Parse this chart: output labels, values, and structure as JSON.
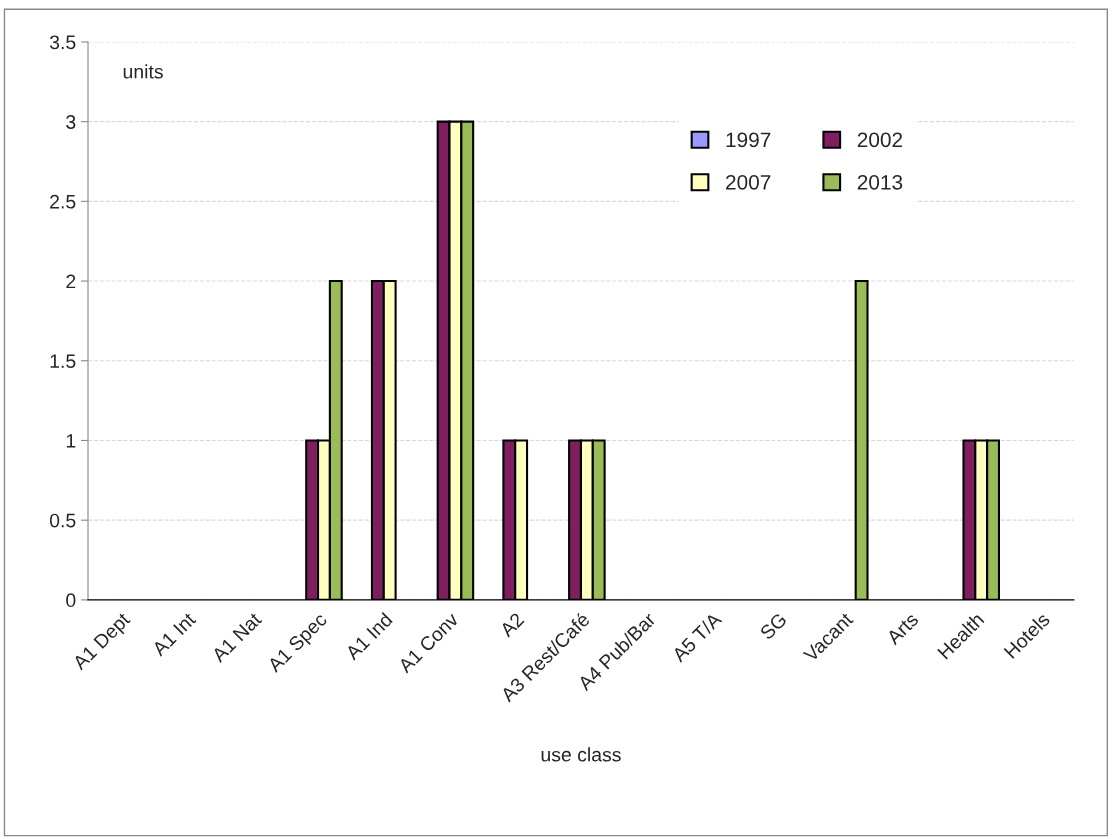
{
  "chart_data": {
    "type": "bar",
    "xlabel": "use class",
    "annotations": [
      "units"
    ],
    "categories": [
      "A1 Dept",
      "A1 Int",
      "A1 Nat",
      "A1 Spec",
      "A1 Ind",
      "A1 Conv",
      "A2",
      "A3 Rest/Café",
      "A4 Pub/Bar",
      "A5 T/A",
      "SG",
      "Vacant",
      "Arts",
      "Health",
      "Hotels"
    ],
    "series": [
      {
        "name": "1997",
        "color": "#9999ff",
        "values": [
          0,
          0,
          0,
          0,
          0,
          0,
          0,
          0,
          0,
          0,
          0,
          0,
          0,
          0,
          0
        ]
      },
      {
        "name": "2002",
        "color": "#7f1f5f",
        "values": [
          0,
          0,
          0,
          1,
          2,
          3,
          1,
          1,
          0,
          0,
          0,
          0,
          0,
          1,
          0
        ]
      },
      {
        "name": "2007",
        "color": "#ffffc0",
        "values": [
          0,
          0,
          0,
          1,
          2,
          3,
          1,
          1,
          0,
          0,
          0,
          0,
          0,
          1,
          0
        ]
      },
      {
        "name": "2013",
        "color": "#9bbb59",
        "values": [
          0,
          0,
          0,
          2,
          0,
          3,
          0,
          1,
          0,
          0,
          0,
          2,
          0,
          1,
          0
        ]
      }
    ],
    "ylim": [
      0,
      3.5
    ],
    "yticks": [
      0,
      0.5,
      1,
      1.5,
      2,
      2.5,
      3,
      3.5
    ],
    "grid": "y",
    "legend": "top right"
  }
}
